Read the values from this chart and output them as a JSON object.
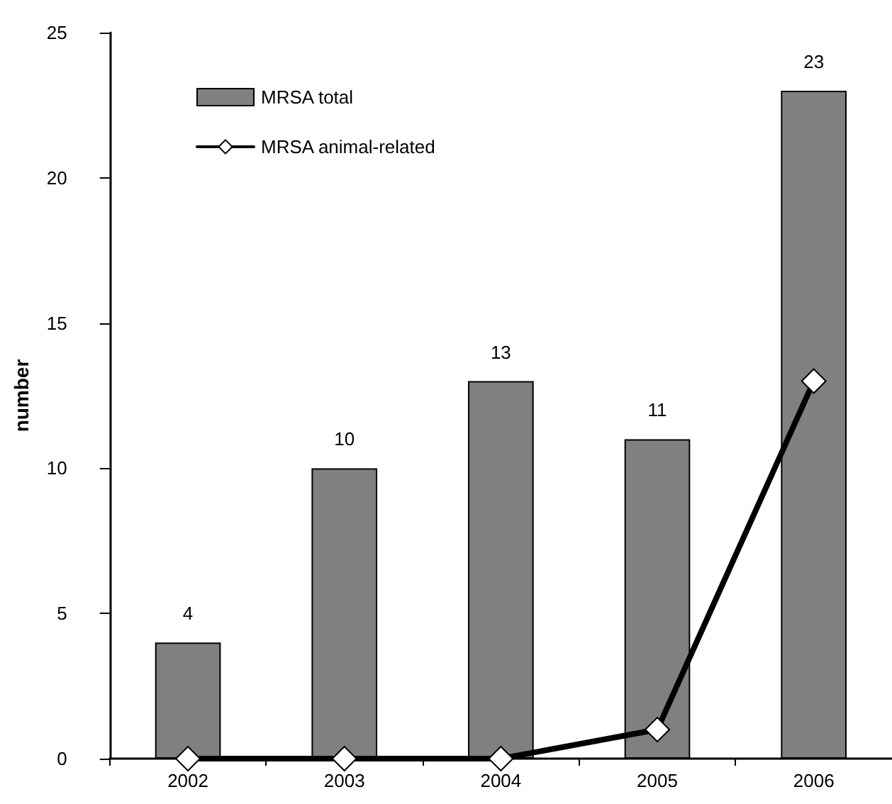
{
  "chart_data": {
    "type": "bar",
    "ylabel": "number",
    "categories": [
      "2002",
      "2003",
      "2004",
      "2005",
      "2006"
    ],
    "series": [
      {
        "name": "MRSA total",
        "color": "#808080",
        "values": [
          4,
          10,
          13,
          11,
          23
        ],
        "value_labels": [
          "4",
          "10",
          "13",
          "11",
          "23"
        ]
      },
      {
        "name": "MRSA animal-related",
        "type": "line",
        "color": "#000000",
        "values": [
          0,
          0,
          0,
          1,
          13
        ],
        "marker": "diamond"
      }
    ],
    "ylim": [
      0,
      25
    ],
    "yticks": [
      0,
      5,
      10,
      15,
      20,
      25
    ],
    "grid": false,
    "legend": "top left"
  }
}
